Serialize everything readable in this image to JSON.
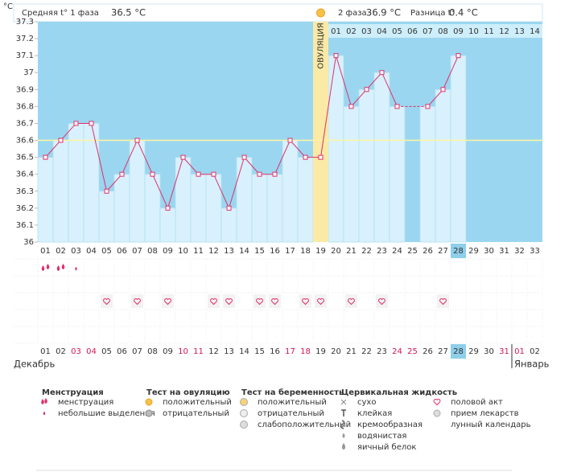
{
  "header": {
    "unit": "°C",
    "phase1_label": "Средняя t° 1 фаза",
    "phase1_value": "36.5 °C",
    "phase2_label": "2 фаза",
    "phase2_value": "36.9 °C",
    "diff_label": "Разница t°",
    "diff_value": "0.4 °C"
  },
  "chart_data": {
    "type": "line",
    "categories": [
      "01",
      "02",
      "03",
      "04",
      "05",
      "06",
      "07",
      "08",
      "09",
      "10",
      "11",
      "12",
      "13",
      "14",
      "15",
      "16",
      "17",
      "18",
      "19",
      "20",
      "21",
      "22",
      "23",
      "24",
      "25",
      "26",
      "27",
      "28",
      "29",
      "30",
      "31",
      "32",
      "33"
    ],
    "values": [
      36.5,
      36.6,
      36.7,
      36.7,
      36.3,
      36.4,
      36.6,
      36.4,
      36.2,
      36.5,
      36.4,
      36.4,
      36.2,
      36.5,
      36.4,
      36.4,
      36.6,
      36.5,
      36.5,
      37.1,
      36.8,
      36.9,
      37.0,
      36.8,
      null,
      36.8,
      36.9,
      37.1,
      null,
      null,
      null,
      null,
      null
    ],
    "phase2_days": [
      "01",
      "02",
      "03",
      "04",
      "05",
      "06",
      "07",
      "08",
      "09",
      "10",
      "11",
      "12",
      "13",
      "14"
    ],
    "ylim": [
      36,
      37.3
    ],
    "yticks": [
      36,
      36.1,
      36.2,
      36.3,
      36.4,
      36.5,
      36.6,
      36.7,
      36.8,
      36.9,
      37,
      37.1,
      37.2,
      37.3
    ],
    "cover_line": 36.6,
    "ovulation_day": "19",
    "ovulation_label": "ОВУЛЯЦИЯ",
    "today": "28",
    "line_color": "#e0306a"
  },
  "symptoms": {
    "menstruation_days": [
      "01",
      "02"
    ],
    "spotting_days": [
      "03"
    ],
    "intercourse_days": [
      "05",
      "07",
      "09",
      "12",
      "13",
      "15",
      "16",
      "18",
      "19",
      "21",
      "23",
      "27"
    ]
  },
  "dates": [
    "01",
    "02",
    "03",
    "04",
    "05",
    "06",
    "07",
    "08",
    "09",
    "10",
    "11",
    "12",
    "13",
    "14",
    "15",
    "16",
    "17",
    "18",
    "19",
    "20",
    "21",
    "22",
    "23",
    "24",
    "25",
    "26",
    "27",
    "28",
    "29",
    "30",
    "31",
    "01",
    "02"
  ],
  "weekend": [
    false,
    false,
    true,
    true,
    false,
    false,
    false,
    false,
    false,
    true,
    true,
    false,
    false,
    false,
    false,
    false,
    true,
    true,
    false,
    false,
    false,
    false,
    false,
    true,
    true,
    false,
    false,
    false,
    false,
    false,
    true,
    true,
    false
  ],
  "months": [
    "Декабрь",
    "Январь"
  ],
  "legend": [
    {
      "title": "Менструация",
      "items": [
        "менструация",
        "небольшие выделения"
      ]
    },
    {
      "title": "Тест на овуляцию",
      "items": [
        "положительный",
        "отрицательный"
      ]
    },
    {
      "title": "Тест на беременность",
      "items": [
        "положительный",
        "отрицательный",
        "слабоположительный"
      ]
    },
    {
      "title": "Цервикальная жидкость",
      "items": [
        "сухо",
        "клейкая",
        "кремообразная",
        "водянистая",
        "яичный белок"
      ]
    },
    {
      "items": [
        "половой акт",
        "прием лекарств",
        "лунный календарь"
      ]
    }
  ]
}
